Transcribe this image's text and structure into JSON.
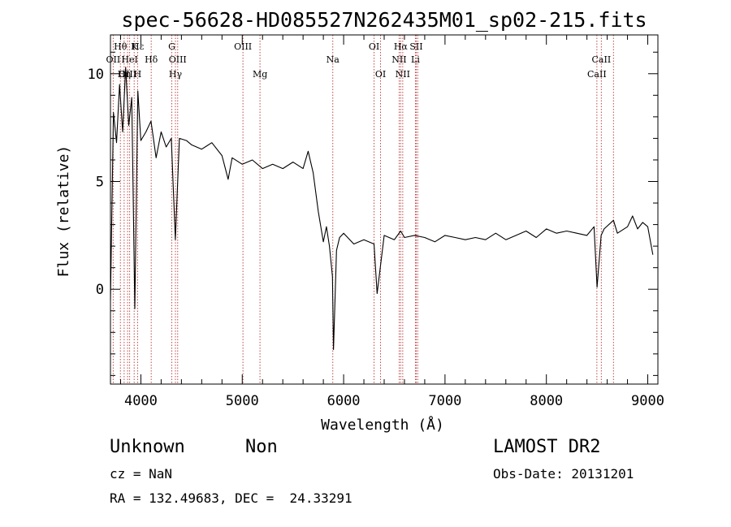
{
  "chart_data": {
    "type": "line",
    "title": "spec-56628-HD085527N262435M01_sp02-215.fits",
    "xlabel": "Wavelength (Å)",
    "ylabel": "Flux (relative)",
    "xlim": [
      3700,
      9100
    ],
    "ylim": [
      -4.4,
      11.8
    ],
    "xticks": [
      4000,
      5000,
      6000,
      7000,
      8000,
      9000
    ],
    "yticks": [
      0,
      5,
      10
    ],
    "grid": false,
    "series": [
      {
        "x": [
          3700,
          3730,
          3760,
          3790,
          3820,
          3850,
          3880,
          3910,
          3940,
          3970,
          4000,
          4050,
          4100,
          4150,
          4200,
          4250,
          4300,
          4340,
          4380,
          4450,
          4500,
          4600,
          4700,
          4800,
          4861,
          4900,
          5000,
          5100,
          5200,
          5300,
          5400,
          5500,
          5600,
          5650,
          5700,
          5750,
          5800,
          5830,
          5860,
          5890,
          5900,
          5930,
          5960,
          6000,
          6100,
          6200,
          6300,
          6330,
          6400,
          6500,
          6563,
          6600,
          6700,
          6800,
          6900,
          7000,
          7100,
          7200,
          7300,
          7400,
          7500,
          7600,
          7700,
          7800,
          7900,
          8000,
          8100,
          8200,
          8300,
          8400,
          8470,
          8500,
          8540,
          8570,
          8662,
          8700,
          8800,
          8850,
          8900,
          8950,
          9000,
          9050
        ],
        "y": [
          -0.5,
          8.2,
          6.8,
          9.5,
          7.3,
          10.3,
          7.6,
          8.9,
          -0.9,
          9.2,
          6.9,
          7.3,
          7.8,
          6.1,
          7.3,
          6.6,
          7.0,
          2.3,
          7.0,
          6.9,
          6.7,
          6.5,
          6.8,
          6.2,
          5.1,
          6.1,
          5.8,
          6.0,
          5.6,
          5.8,
          5.6,
          5.9,
          5.6,
          6.4,
          5.4,
          3.6,
          2.2,
          2.9,
          2.0,
          0.6,
          -2.8,
          1.8,
          2.4,
          2.6,
          2.1,
          2.3,
          2.1,
          -0.2,
          2.5,
          2.3,
          2.7,
          2.4,
          2.5,
          2.4,
          2.2,
          2.5,
          2.4,
          2.3,
          2.4,
          2.3,
          2.6,
          2.3,
          2.5,
          2.7,
          2.4,
          2.8,
          2.6,
          2.7,
          2.6,
          2.5,
          2.9,
          0.1,
          2.5,
          2.8,
          3.2,
          2.6,
          2.9,
          3.4,
          2.8,
          3.1,
          2.9,
          1.6
        ]
      }
    ],
    "line_markers": [
      {
        "label": "Hθ",
        "x": 3798,
        "row": 1,
        "offset": 0
      },
      {
        "label": "OII",
        "x": 3727,
        "row": 2,
        "offset": 0
      },
      {
        "label": "OIII",
        "x": 3869,
        "row": 3,
        "offset": 0
      },
      {
        "label": "Hε",
        "x": 3970,
        "row": 1,
        "offset": 0
      },
      {
        "label": "K",
        "x": 3934,
        "row": 1,
        "offset": 0
      },
      {
        "label": "HeI",
        "x": 3889,
        "row": 2,
        "offset": 0
      },
      {
        "label": "Hη",
        "x": 3835,
        "row": 3,
        "offset": 0
      },
      {
        "label": "H",
        "x": 3968,
        "row": 3,
        "offset": 0
      },
      {
        "label": "Hδ",
        "x": 4102,
        "row": 2,
        "offset": 0
      },
      {
        "label": "G",
        "x": 4305,
        "row": 1,
        "offset": 0
      },
      {
        "label": "OIII",
        "x": 4363,
        "row": 2,
        "offset": 0
      },
      {
        "label": "Hγ",
        "x": 4341,
        "row": 3,
        "offset": 0
      },
      {
        "label": "OIII",
        "x": 5007,
        "row": 1,
        "offset": 0
      },
      {
        "label": "Mg",
        "x": 5175,
        "row": 3,
        "offset": 0
      },
      {
        "label": "Na",
        "x": 5893,
        "row": 2,
        "offset": 0
      },
      {
        "label": "OI",
        "x": 6300,
        "row": 1,
        "offset": 0
      },
      {
        "label": "OI",
        "x": 6364,
        "row": 3,
        "offset": 0
      },
      {
        "label": "Hα",
        "x": 6563,
        "row": 1,
        "offset": 0
      },
      {
        "label": "NII",
        "x": 6548,
        "row": 2,
        "offset": 0
      },
      {
        "label": "NII",
        "x": 6583,
        "row": 3,
        "offset": 0
      },
      {
        "label": "SII",
        "x": 6716,
        "row": 1,
        "offset": 0
      },
      {
        "label": "Li",
        "x": 6708,
        "row": 2,
        "offset": 0
      },
      {
        "label": "CaII",
        "x": 8542,
        "row": 2,
        "offset": 0
      },
      {
        "label": "CaII",
        "x": 8498,
        "row": 3,
        "offset": 0
      }
    ],
    "marker_positions": [
      3727,
      3798,
      3835,
      3869,
      3889,
      3934,
      3968,
      4102,
      4305,
      4341,
      4363,
      5007,
      5175,
      5893,
      6300,
      6364,
      6548,
      6563,
      6583,
      6708,
      6716,
      6731,
      8498,
      8542,
      8662
    ],
    "colors": {
      "spectrum": "#000000",
      "markers": "#c04848"
    }
  },
  "info": {
    "object_class": "Unknown",
    "subclass": "Non",
    "cz": "cz = NaN",
    "coords": "RA = 132.49683, DEC =  24.33291",
    "survey": "LAMOST DR2",
    "obs_date": "Obs-Date: 20131201"
  }
}
